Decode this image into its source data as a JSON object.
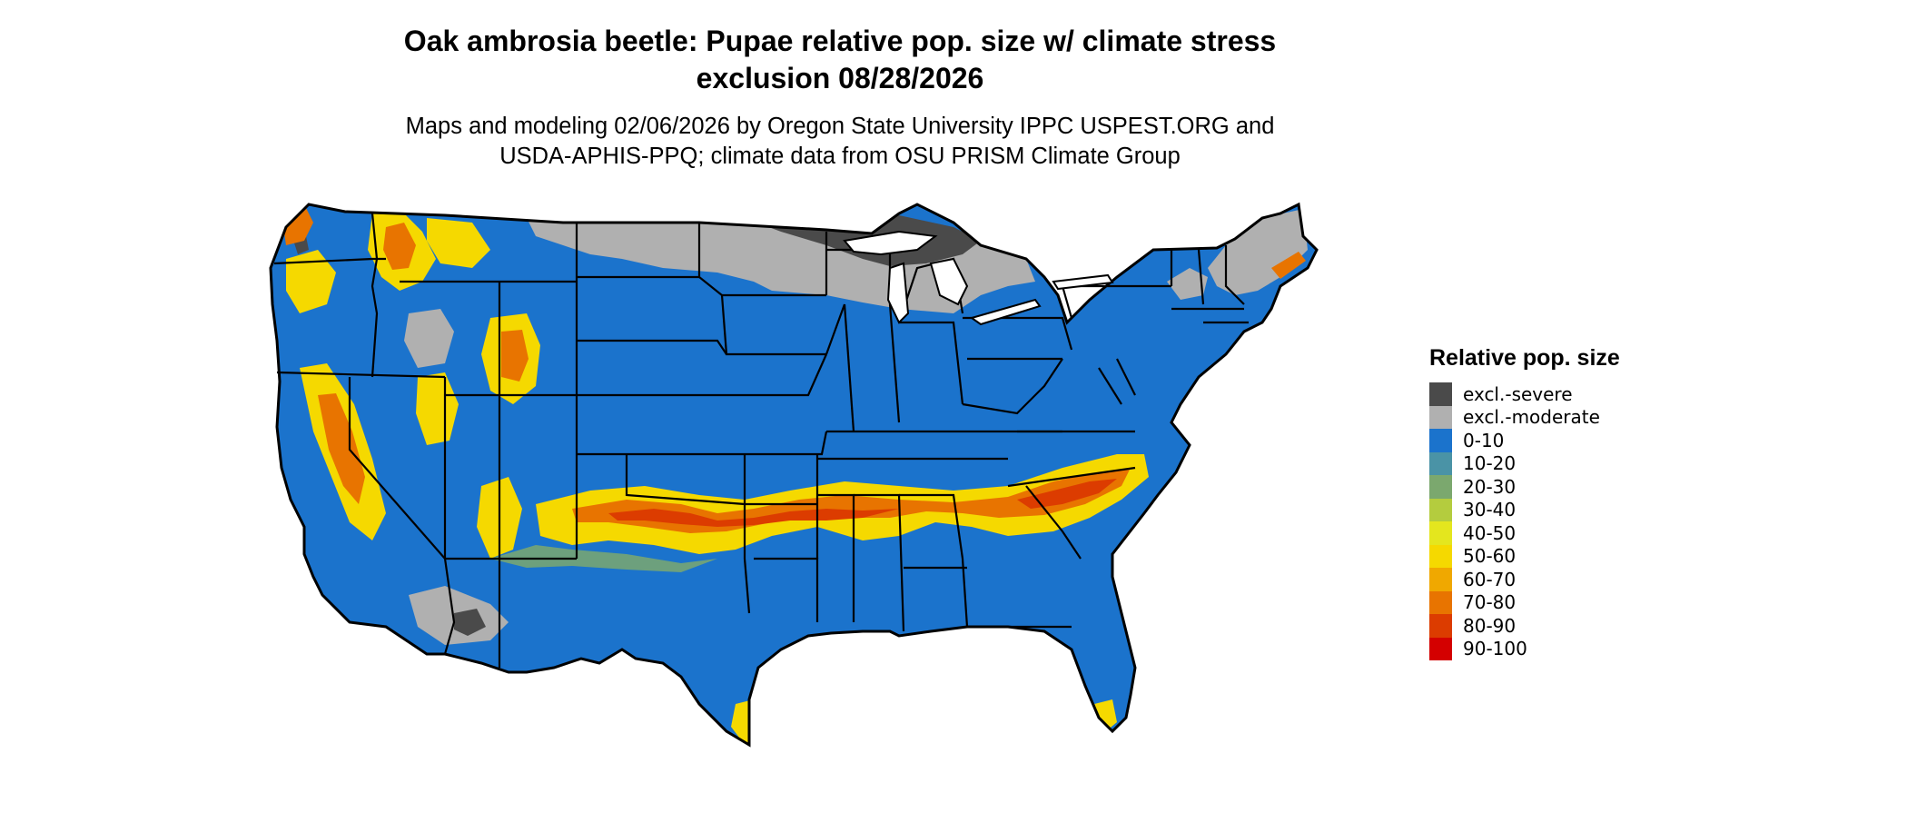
{
  "title": {
    "line1": "Oak ambrosia beetle: Pupae relative pop. size w/ climate stress",
    "line2": "exclusion 08/28/2026"
  },
  "subtitle": {
    "line1": "Maps and modeling 02/06/2026 by Oregon State University IPPC USPEST.ORG and",
    "line2": "USDA-APHIS-PPQ; climate data from OSU PRISM Climate Group"
  },
  "legend": {
    "title": "Relative pop. size",
    "items": [
      {
        "label": "excl.-severe",
        "color": "#4a4a4a"
      },
      {
        "label": "excl.-moderate",
        "color": "#b0b0b0"
      },
      {
        "label": "0-10",
        "color": "#1b73cc"
      },
      {
        "label": "10-20",
        "color": "#4a93a6"
      },
      {
        "label": "20-30",
        "color": "#7ba86e"
      },
      {
        "label": "30-40",
        "color": "#b4cc3e"
      },
      {
        "label": "40-50",
        "color": "#e4e61e"
      },
      {
        "label": "50-60",
        "color": "#f5d900"
      },
      {
        "label": "60-70",
        "color": "#f0a800"
      },
      {
        "label": "70-80",
        "color": "#e87400"
      },
      {
        "label": "80-90",
        "color": "#dc3c00"
      },
      {
        "label": "90-100",
        "color": "#d40000"
      }
    ]
  }
}
